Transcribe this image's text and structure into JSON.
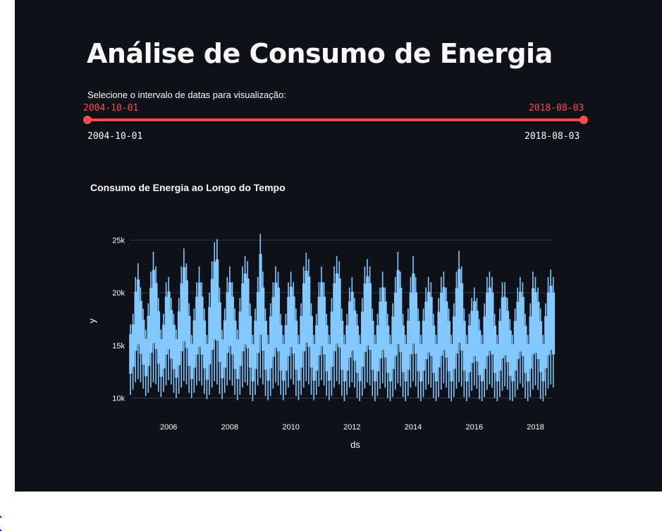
{
  "app": {
    "title": "Análise de Consumo de Energia",
    "slider": {
      "label": "Selecione o intervalo de datas para visualização:",
      "start_value": "2004-10-01",
      "end_value": "2018-08-03",
      "min_label": "2004-10-01",
      "max_label": "2018-08-03",
      "accent_color": "#ff4b4b",
      "selected_fraction": [
        0,
        1
      ]
    },
    "chart_heading": "Consumo de Energia ao Longo do Tempo"
  },
  "chart_data": {
    "type": "line",
    "title": "Consumo de Energia ao Longo do Tempo",
    "xlabel": "ds",
    "ylabel": "y",
    "xlim": [
      "2004-10-01",
      "2018-08-03"
    ],
    "ylim": [
      9500,
      25700
    ],
    "x_ticks": [
      "2006",
      "2008",
      "2010",
      "2012",
      "2014",
      "2016",
      "2018"
    ],
    "y_ticks": [
      "10k",
      "15k",
      "20k",
      "25k"
    ],
    "grid": true,
    "line_color": "#83c9ff",
    "series": [
      {
        "x": [
          "2004-10",
          "2004-11",
          "2004-12",
          "2005-01",
          "2005-02",
          "2005-03",
          "2005-04",
          "2005-05",
          "2005-06",
          "2005-07",
          "2005-08",
          "2005-09",
          "2005-10",
          "2005-11",
          "2005-12",
          "2006-01",
          "2006-02",
          "2006-03",
          "2006-04",
          "2006-05",
          "2006-06",
          "2006-07",
          "2006-08",
          "2006-09",
          "2006-10",
          "2006-11",
          "2006-12",
          "2007-01",
          "2007-02",
          "2007-03",
          "2007-04",
          "2007-05",
          "2007-06",
          "2007-07",
          "2007-08",
          "2007-09",
          "2007-10",
          "2007-11",
          "2007-12",
          "2008-01",
          "2008-02",
          "2008-03",
          "2008-04",
          "2008-05",
          "2008-06",
          "2008-07",
          "2008-08",
          "2008-09",
          "2008-10",
          "2008-11",
          "2008-12",
          "2009-01",
          "2009-02",
          "2009-03",
          "2009-04",
          "2009-05",
          "2009-06",
          "2009-07",
          "2009-08",
          "2009-09",
          "2009-10",
          "2009-11",
          "2009-12",
          "2010-01",
          "2010-02",
          "2010-03",
          "2010-04",
          "2010-05",
          "2010-06",
          "2010-07",
          "2010-08",
          "2010-09",
          "2010-10",
          "2010-11",
          "2010-12",
          "2011-01",
          "2011-02",
          "2011-03",
          "2011-04",
          "2011-05",
          "2011-06",
          "2011-07",
          "2011-08",
          "2011-09",
          "2011-10",
          "2011-11",
          "2011-12",
          "2012-01",
          "2012-02",
          "2012-03",
          "2012-04",
          "2012-05",
          "2012-06",
          "2012-07",
          "2012-08",
          "2012-09",
          "2012-10",
          "2012-11",
          "2012-12",
          "2013-01",
          "2013-02",
          "2013-03",
          "2013-04",
          "2013-05",
          "2013-06",
          "2013-07",
          "2013-08",
          "2013-09",
          "2013-10",
          "2013-11",
          "2013-12",
          "2014-01",
          "2014-02",
          "2014-03",
          "2014-04",
          "2014-05",
          "2014-06",
          "2014-07",
          "2014-08",
          "2014-09",
          "2014-10",
          "2014-11",
          "2014-12",
          "2015-01",
          "2015-02",
          "2015-03",
          "2015-04",
          "2015-05",
          "2015-06",
          "2015-07",
          "2015-08",
          "2015-09",
          "2015-10",
          "2015-11",
          "2015-12",
          "2016-01",
          "2016-02",
          "2016-03",
          "2016-04",
          "2016-05",
          "2016-06",
          "2016-07",
          "2016-08",
          "2016-09",
          "2016-10",
          "2016-11",
          "2016-12",
          "2017-01",
          "2017-02",
          "2017-03",
          "2017-04",
          "2017-05",
          "2017-06",
          "2017-07",
          "2017-08",
          "2017-09",
          "2017-10",
          "2017-11",
          "2017-12",
          "2018-01",
          "2018-02",
          "2018-03",
          "2018-04",
          "2018-05",
          "2018-06",
          "2018-07",
          "2018-08"
        ],
        "y_max": [
          17000,
          18000,
          21500,
          22800,
          20500,
          18500,
          16500,
          19000,
          22000,
          23900,
          22500,
          19500,
          16500,
          18000,
          21000,
          21500,
          19500,
          18000,
          16500,
          19500,
          22500,
          24200,
          22800,
          19000,
          16000,
          18500,
          21000,
          22500,
          21000,
          18500,
          16000,
          20000,
          23000,
          24800,
          25100,
          20500,
          16500,
          18500,
          21500,
          22500,
          21000,
          18500,
          16500,
          19500,
          22500,
          23500,
          23000,
          19000,
          16000,
          18500,
          21500,
          25600,
          22000,
          18500,
          16000,
          19000,
          21000,
          22500,
          22000,
          18000,
          16000,
          18000,
          21000,
          22000,
          21000,
          18500,
          16000,
          19000,
          22500,
          23800,
          23200,
          19000,
          16000,
          18000,
          21000,
          22500,
          21000,
          18000,
          16000,
          19500,
          22500,
          23500,
          23000,
          18500,
          16000,
          18000,
          20500,
          21500,
          19500,
          18000,
          16000,
          19500,
          22500,
          23200,
          22500,
          18500,
          16000,
          18000,
          20500,
          22000,
          20500,
          18000,
          16000,
          19000,
          21500,
          23900,
          22000,
          18000,
          16000,
          18500,
          21500,
          23500,
          21500,
          18500,
          16000,
          18500,
          20500,
          21500,
          21000,
          18000,
          16000,
          19500,
          21500,
          22000,
          20500,
          18500,
          16000,
          19000,
          22000,
          24000,
          22500,
          18500,
          16000,
          18000,
          19500,
          20500,
          19500,
          17500,
          16000,
          19000,
          21500,
          22000,
          21500,
          18000,
          16000,
          18500,
          21000,
          21000,
          19500,
          17500,
          16000,
          18500,
          20500,
          21500,
          21000,
          18000,
          16000,
          19000,
          22000,
          21500,
          20500,
          18500,
          16000,
          19000,
          21500,
          22200,
          21500
        ],
        "y_min": [
          10300,
          10800,
          11500,
          11800,
          11500,
          10900,
          10200,
          10500,
          11000,
          11500,
          11300,
          10600,
          10100,
          10600,
          11200,
          11700,
          11300,
          10500,
          10000,
          10400,
          11000,
          11600,
          11300,
          10500,
          10000,
          10500,
          11200,
          11600,
          11200,
          10400,
          9900,
          10300,
          11000,
          11600,
          11300,
          10400,
          9900,
          10500,
          11200,
          11700,
          11200,
          10300,
          9800,
          10300,
          11000,
          11500,
          11200,
          10300,
          9700,
          10300,
          11200,
          11900,
          11300,
          10200,
          9800,
          10200,
          10900,
          11500,
          11200,
          10300,
          9800,
          10300,
          11000,
          11800,
          11300,
          10200,
          9800,
          10300,
          11000,
          11600,
          11300,
          10300,
          9800,
          10300,
          11100,
          11700,
          11200,
          10200,
          9800,
          10200,
          11000,
          11600,
          11300,
          10200,
          9700,
          10300,
          11000,
          11500,
          11000,
          10000,
          9700,
          10200,
          10900,
          11500,
          11200,
          10200,
          9700,
          10200,
          10900,
          11400,
          11000,
          10000,
          9700,
          10100,
          10800,
          11400,
          11100,
          10100,
          9700,
          10200,
          11000,
          11600,
          11100,
          10000,
          9700,
          10100,
          10800,
          11300,
          11000,
          10000,
          9700,
          10100,
          10800,
          11400,
          11000,
          10000,
          9700,
          10100,
          10900,
          11500,
          11100,
          10100,
          9700,
          10100,
          10700,
          11200,
          10900,
          9900,
          9700,
          10100,
          10800,
          11300,
          11000,
          10000,
          9700,
          10100,
          10700,
          11100,
          10800,
          9800,
          9700,
          10100,
          10800,
          11400,
          11000,
          10000,
          9700,
          10100,
          10800,
          11200,
          10800,
          9900,
          9700,
          10200,
          10900,
          11300,
          11000
        ]
      }
    ]
  }
}
